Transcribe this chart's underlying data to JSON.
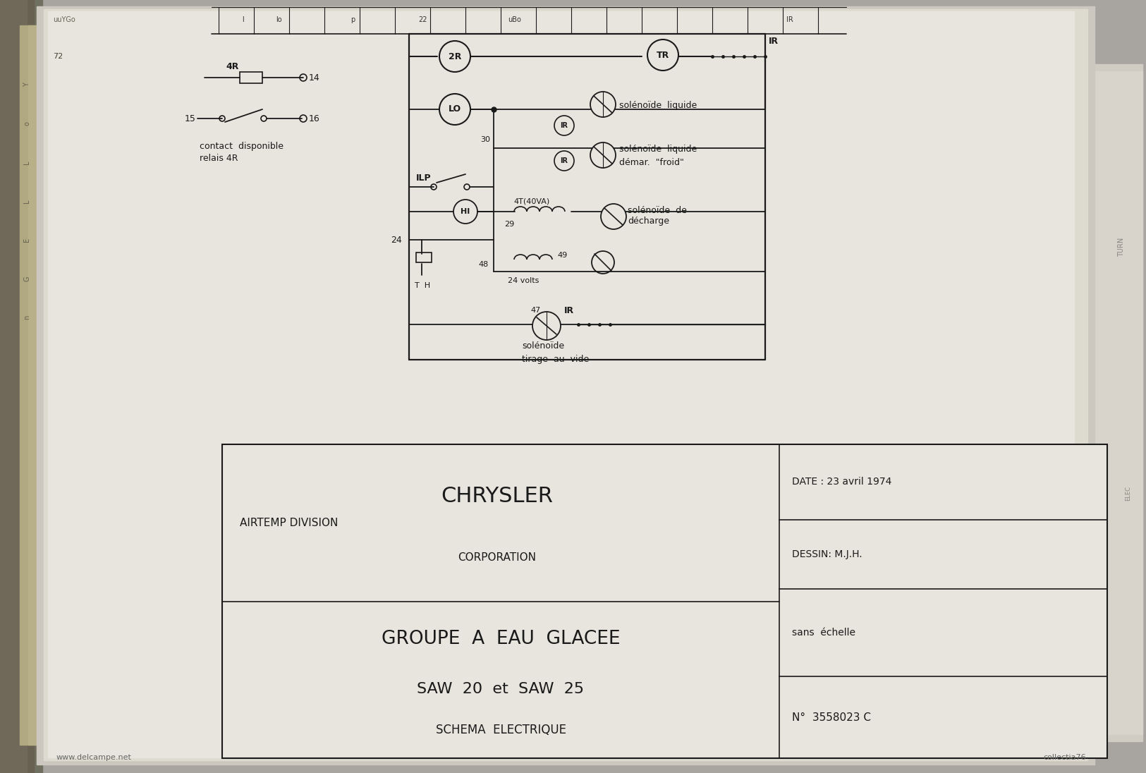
{
  "bg_color": "#a8a4a0",
  "paper_color": "#e2dfd8",
  "line_color": "#1a1a1a",
  "title_block": {
    "airtemp_division": "AIRTEMP DIVISION",
    "chrysler": "CHRYSLER",
    "corporation": "CORPORATION",
    "groupe": "GROUPE  A  EAU  GLACEE",
    "saw": "SAW  20  et  SAW  25",
    "schema": "SCHEMA  ELECTRIQUE",
    "date_label": "DATE : 23 avril 1974",
    "dessin_label": "DESSIN: M.J.H.",
    "sans_echelle": "sans  échelle",
    "numero": "N°  3558023 C"
  },
  "watermark_left": "www.delcampe.net",
  "watermark_right": "collectia76"
}
